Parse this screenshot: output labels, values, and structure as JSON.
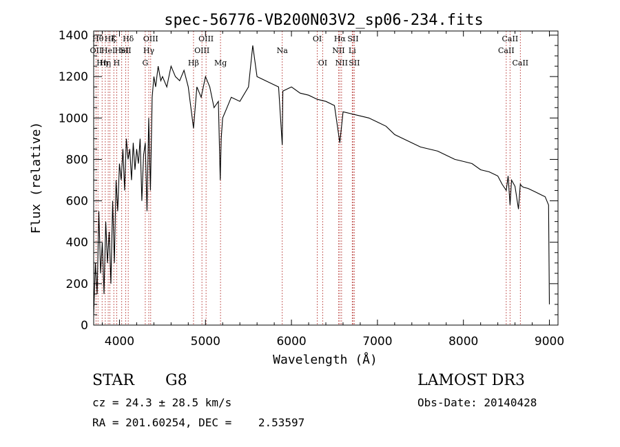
{
  "chart_data": {
    "type": "line",
    "title": "spec-56776-VB200N03V2_sp06-234.fits",
    "xlabel": "Wavelength (Å)",
    "ylabel": "Flux (relative)",
    "xlim": [
      3700,
      9100
    ],
    "ylim": [
      0,
      1420
    ],
    "xticks": [
      4000,
      5000,
      6000,
      7000,
      8000,
      9000
    ],
    "yticks": [
      0,
      200,
      400,
      600,
      800,
      1000,
      1200,
      1400
    ],
    "grid": false,
    "series": [
      {
        "name": "flux",
        "x": [
          3700,
          3720,
          3740,
          3760,
          3780,
          3800,
          3820,
          3840,
          3860,
          3880,
          3900,
          3920,
          3940,
          3960,
          3980,
          4000,
          4020,
          4040,
          4060,
          4080,
          4100,
          4120,
          4140,
          4160,
          4180,
          4200,
          4220,
          4240,
          4260,
          4280,
          4300,
          4320,
          4340,
          4360,
          4380,
          4400,
          4420,
          4450,
          4480,
          4500,
          4550,
          4600,
          4650,
          4700,
          4750,
          4800,
          4861,
          4900,
          4950,
          5000,
          5050,
          5100,
          5150,
          5172,
          5183,
          5200,
          5250,
          5300,
          5400,
          5500,
          5550,
          5600,
          5700,
          5800,
          5850,
          5893,
          5900,
          5950,
          6000,
          6100,
          6200,
          6300,
          6400,
          6500,
          6563,
          6600,
          6700,
          6800,
          6900,
          7000,
          7100,
          7200,
          7300,
          7400,
          7500,
          7600,
          7700,
          7800,
          7900,
          8000,
          8100,
          8200,
          8300,
          8400,
          8450,
          8498,
          8520,
          8542,
          8560,
          8600,
          8640,
          8662,
          8680,
          8700,
          8750,
          8800,
          8850,
          8900,
          8950,
          8990,
          9000
        ],
        "values": [
          50,
          300,
          150,
          550,
          250,
          400,
          150,
          500,
          300,
          450,
          200,
          600,
          300,
          700,
          550,
          780,
          700,
          850,
          650,
          900,
          800,
          850,
          700,
          880,
          750,
          850,
          780,
          900,
          600,
          820,
          880,
          550,
          1000,
          650,
          1100,
          1200,
          1150,
          1250,
          1180,
          1200,
          1150,
          1250,
          1200,
          1180,
          1230,
          1150,
          950,
          1150,
          1100,
          1200,
          1150,
          1050,
          1080,
          700,
          900,
          1000,
          1050,
          1100,
          1080,
          1150,
          1350,
          1200,
          1180,
          1160,
          1150,
          870,
          1130,
          1140,
          1150,
          1120,
          1110,
          1090,
          1080,
          1060,
          880,
          1030,
          1020,
          1010,
          1000,
          980,
          960,
          920,
          900,
          880,
          860,
          850,
          840,
          820,
          800,
          790,
          780,
          750,
          740,
          720,
          680,
          650,
          720,
          580,
          700,
          670,
          560,
          680,
          670,
          665,
          660,
          650,
          640,
          630,
          620,
          580,
          100
        ]
      }
    ],
    "lines": [
      {
        "x": 3727,
        "label": "OII",
        "row": 1
      },
      {
        "x": 3750,
        "label": "Hθ",
        "row": 0
      },
      {
        "x": 3798,
        "label": "Hη",
        "row": 2
      },
      {
        "x": 3835,
        "label": "Hη",
        "row": 2
      },
      {
        "x": 3869,
        "label": "HeI",
        "row": 1
      },
      {
        "x": 3889,
        "label": "Hζ",
        "row": 0
      },
      {
        "x": 3934,
        "label": "K",
        "row": 0
      },
      {
        "x": 3968,
        "label": "H",
        "row": 2
      },
      {
        "x": 4026,
        "label": "HeI",
        "row": 1
      },
      {
        "x": 4072,
        "label": "SII",
        "row": 1
      },
      {
        "x": 4102,
        "label": "Hδ",
        "row": 0
      },
      {
        "x": 4300,
        "label": "G",
        "row": 2
      },
      {
        "x": 4341,
        "label": "Hγ",
        "row": 1
      },
      {
        "x": 4363,
        "label": "OIII",
        "row": 0
      },
      {
        "x": 4861,
        "label": "Hβ",
        "row": 2
      },
      {
        "x": 4959,
        "label": "OIII",
        "row": 1
      },
      {
        "x": 5007,
        "label": "OIII",
        "row": 0
      },
      {
        "x": 5175,
        "label": "Mg",
        "row": 2
      },
      {
        "x": 5893,
        "label": "Na",
        "row": 1
      },
      {
        "x": 6300,
        "label": "OI",
        "row": 0
      },
      {
        "x": 6363,
        "label": "OI",
        "row": 2
      },
      {
        "x": 6548,
        "label": "NII",
        "row": 1
      },
      {
        "x": 6563,
        "label": "Hα",
        "row": 0
      },
      {
        "x": 6583,
        "label": "NII",
        "row": 2
      },
      {
        "x": 6707,
        "label": "Li",
        "row": 1
      },
      {
        "x": 6716,
        "label": "SII",
        "row": 0
      },
      {
        "x": 6731,
        "label": "SII",
        "row": 2
      },
      {
        "x": 8498,
        "label": "CaII",
        "row": 1
      },
      {
        "x": 8542,
        "label": "CaII",
        "row": 0
      },
      {
        "x": 8662,
        "label": "CaII",
        "row": 2
      }
    ]
  },
  "info": {
    "object_class": "STAR",
    "subclass": "G8",
    "survey": "LAMOST DR3",
    "cz": "cz = 24.3 ± 28.5 km/s",
    "obs_date": "Obs-Date: 20140428",
    "coords": "RA = 201.60254, DEC =    2.53597"
  },
  "colors": {
    "line_marker": "#c0504d",
    "spectrum": "#000000"
  }
}
